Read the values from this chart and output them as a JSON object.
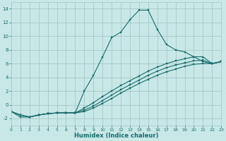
{
  "xlabel": "Humidex (Indice chaleur)",
  "xlim": [
    0,
    23
  ],
  "ylim": [
    -3,
    15
  ],
  "yticks": [
    -2,
    0,
    2,
    4,
    6,
    8,
    10,
    12,
    14
  ],
  "xticks": [
    0,
    1,
    2,
    3,
    4,
    5,
    6,
    7,
    8,
    9,
    10,
    11,
    12,
    13,
    14,
    15,
    16,
    17,
    18,
    19,
    20,
    21,
    22,
    23
  ],
  "bg_color": "#c8e8e8",
  "grid_color": "#a8c8c8",
  "line_color": "#1a6b6b",
  "curve1_x": [
    0,
    1,
    2,
    3,
    4,
    5,
    6,
    7,
    8,
    9,
    10,
    11,
    12,
    13,
    14,
    15,
    16,
    17,
    18,
    19,
    20,
    21,
    22,
    23
  ],
  "curve1_y": [
    -1.0,
    -1.8,
    -1.8,
    -1.5,
    -1.3,
    -1.2,
    -1.2,
    -1.2,
    2.0,
    4.3,
    7.0,
    9.8,
    10.6,
    12.4,
    13.8,
    13.8,
    11.0,
    8.8,
    8.0,
    7.7,
    7.0,
    6.3,
    6.0,
    6.3
  ],
  "curve2_x": [
    0,
    1,
    2,
    3,
    4,
    5,
    6,
    7,
    8,
    9,
    10,
    11,
    12,
    13,
    14,
    15,
    16,
    17,
    18,
    19,
    20,
    21,
    22,
    23
  ],
  "curve2_y": [
    -1.0,
    -1.5,
    -1.8,
    -1.5,
    -1.3,
    -1.2,
    -1.2,
    -1.2,
    -0.5,
    0.3,
    1.2,
    2.0,
    2.8,
    3.5,
    4.2,
    4.9,
    5.5,
    6.0,
    6.4,
    6.7,
    7.0,
    7.0,
    6.0,
    6.3
  ],
  "curve3_x": [
    0,
    1,
    2,
    3,
    4,
    5,
    6,
    7,
    8,
    9,
    10,
    11,
    12,
    13,
    14,
    15,
    16,
    17,
    18,
    19,
    20,
    21,
    22,
    23
  ],
  "curve3_y": [
    -1.0,
    -1.5,
    -1.8,
    -1.5,
    -1.3,
    -1.2,
    -1.2,
    -1.2,
    -0.8,
    -0.2,
    0.6,
    1.4,
    2.2,
    2.9,
    3.6,
    4.3,
    4.9,
    5.4,
    5.8,
    6.1,
    6.4,
    6.5,
    6.0,
    6.3
  ],
  "curve4_x": [
    0,
    1,
    2,
    3,
    4,
    5,
    6,
    7,
    8,
    9,
    10,
    11,
    12,
    13,
    14,
    15,
    16,
    17,
    18,
    19,
    20,
    21,
    22,
    23
  ],
  "curve4_y": [
    -1.0,
    -1.5,
    -1.8,
    -1.5,
    -1.3,
    -1.2,
    -1.2,
    -1.2,
    -1.0,
    -0.5,
    0.2,
    0.9,
    1.7,
    2.4,
    3.1,
    3.7,
    4.3,
    4.8,
    5.2,
    5.6,
    5.9,
    6.0,
    6.0,
    6.3
  ]
}
